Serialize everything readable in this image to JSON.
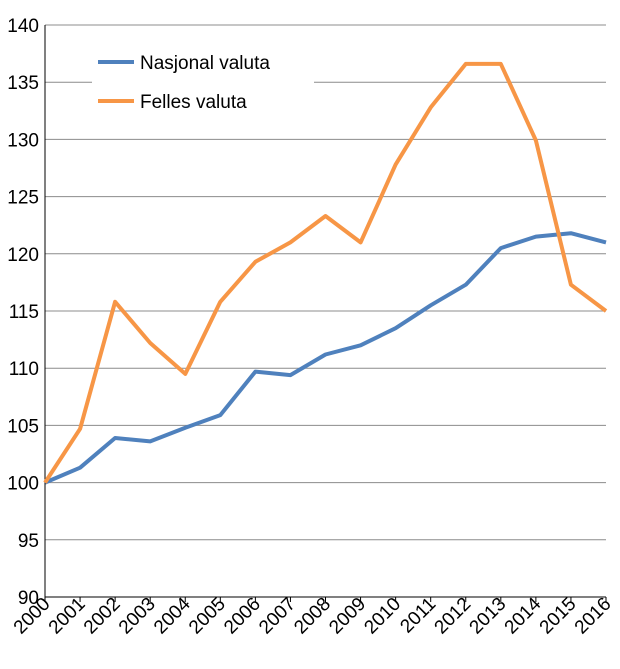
{
  "chart_data": {
    "type": "line",
    "title": "",
    "xlabel": "",
    "ylabel": "",
    "x": [
      "2000",
      "2001",
      "2002",
      "2003",
      "2004",
      "2005",
      "2006",
      "2007",
      "2008",
      "2009",
      "2010",
      "2011",
      "2012",
      "2013",
      "2014",
      "2015",
      "2016"
    ],
    "ylim": [
      90,
      140
    ],
    "yticks": [
      90,
      95,
      100,
      105,
      110,
      115,
      120,
      125,
      130,
      135,
      140
    ],
    "grid": "horizontal",
    "legend_position": "top-left",
    "series": [
      {
        "name": "Nasjonal valuta",
        "color": "#4f81bd",
        "values": [
          100,
          101.3,
          103.9,
          103.6,
          104.8,
          105.9,
          109.7,
          109.4,
          111.2,
          112.0,
          113.5,
          115.5,
          117.3,
          120.5,
          121.5,
          121.8,
          121.0
        ]
      },
      {
        "name": "Felles valuta",
        "color": "#f79646",
        "values": [
          100,
          104.7,
          115.8,
          112.2,
          109.5,
          115.8,
          119.3,
          121.0,
          123.3,
          121.0,
          127.8,
          132.8,
          136.6,
          136.6,
          129.9,
          117.3,
          115.0
        ]
      }
    ]
  }
}
